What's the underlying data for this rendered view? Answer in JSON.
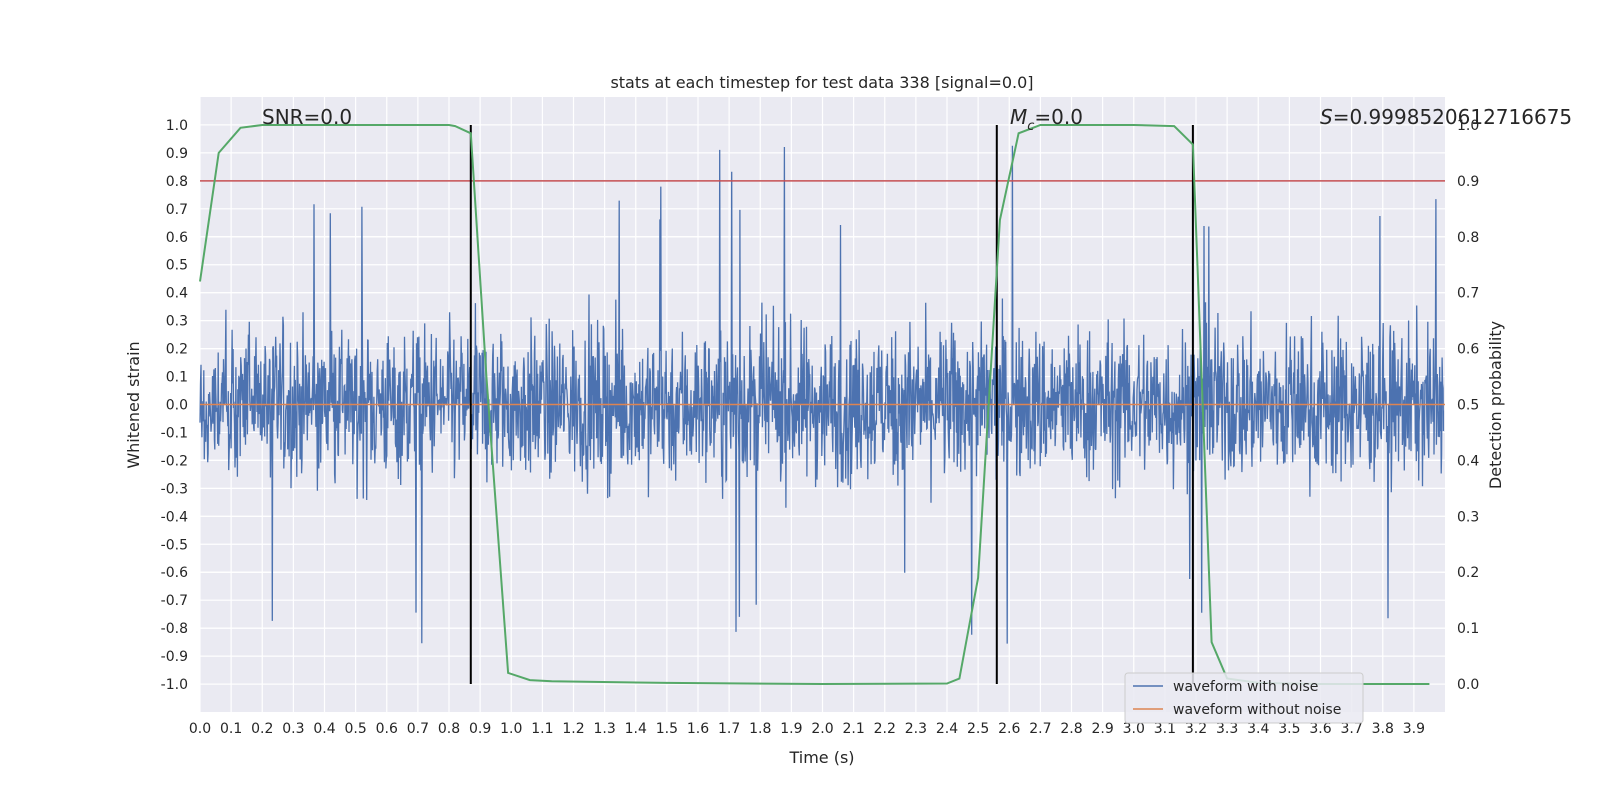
{
  "chart_data": {
    "type": "line",
    "title": "stats at each timestep for test data 338 [signal=0.0]",
    "xlabel": "Time (s)",
    "ylabel": "Whitened strain",
    "y2label": "Detection probability",
    "xlim": [
      0.0,
      4.0
    ],
    "ylim": [
      -1.1,
      1.1
    ],
    "y2lim": [
      -0.05,
      1.05
    ],
    "xticks": [
      "0.0",
      "0.1",
      "0.2",
      "0.3",
      "0.4",
      "0.5",
      "0.6",
      "0.7",
      "0.8",
      "0.9",
      "1.0",
      "1.1",
      "1.2",
      "1.3",
      "1.4",
      "1.5",
      "1.6",
      "1.7",
      "1.8",
      "1.9",
      "2.0",
      "2.1",
      "2.2",
      "2.3",
      "2.4",
      "2.5",
      "2.6",
      "2.7",
      "2.8",
      "2.9",
      "3.0",
      "3.1",
      "3.2",
      "3.3",
      "3.4",
      "3.5",
      "3.6",
      "3.7",
      "3.8",
      "3.9"
    ],
    "yticks": [
      "1.0",
      "0.9",
      "0.8",
      "0.7",
      "0.6",
      "0.5",
      "0.4",
      "0.3",
      "0.2",
      "0.1",
      "0.0",
      "-0.1",
      "-0.2",
      "-0.3",
      "-0.4",
      "-0.5",
      "-0.6",
      "-0.7",
      "-0.8",
      "-0.9",
      "-1.0"
    ],
    "y2ticks": [
      "1.0",
      "0.9",
      "0.8",
      "0.7",
      "0.6",
      "0.5",
      "0.4",
      "0.3",
      "0.2",
      "0.1",
      "0.0"
    ],
    "grid": true,
    "legend_position": "lower-right",
    "series": [
      {
        "name": "waveform with noise",
        "color": "#4c72b0",
        "kind": "noise",
        "amplitude_approx": 1.0
      },
      {
        "name": "waveform without noise",
        "color": "#dd8452",
        "kind": "constant",
        "value": 0.0
      }
    ],
    "detection_probability": {
      "color": "#55a868",
      "x": [
        0.0,
        0.06,
        0.13,
        0.2,
        0.3,
        0.5,
        0.8,
        0.82,
        0.87,
        0.92,
        0.99,
        1.06,
        1.13,
        1.5,
        2.0,
        2.4,
        2.44,
        2.5,
        2.57,
        2.63,
        2.7,
        3.0,
        3.13,
        3.19,
        3.25,
        3.3,
        3.4,
        3.6,
        3.95
      ],
      "y": [
        0.72,
        0.95,
        0.995,
        1.0,
        1.0,
        1.0,
        1.0,
        0.998,
        0.985,
        0.55,
        0.02,
        0.007,
        0.005,
        0.002,
        0.0,
        0.001,
        0.01,
        0.19,
        0.83,
        0.985,
        1.0,
        1.0,
        0.998,
        0.965,
        0.075,
        0.01,
        0.002,
        0.0,
        0.0
      ]
    },
    "threshold": {
      "y2": 0.9,
      "color": "#c44e52"
    },
    "vlines": {
      "x": [
        0.87,
        2.56,
        3.19
      ],
      "color": "#000000"
    },
    "annotations": {
      "snr": "SNR=0.0",
      "mc_symbol": "M",
      "mc_subscript": "c",
      "mc_value": "=0.0",
      "s_symbol": "S",
      "s_value": "=0.9998520612716675"
    },
    "colors": {
      "plot_bg": "#eaeaf2",
      "grid": "#ffffff"
    }
  }
}
